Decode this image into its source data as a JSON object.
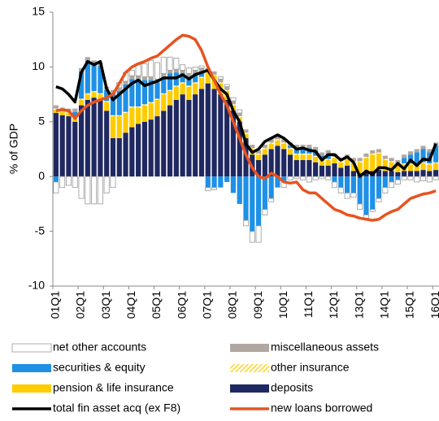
{
  "chart_data": {
    "type": "bar",
    "stacked": true,
    "y_label": "% of GDP",
    "ylim": [
      -10,
      15
    ],
    "yticks": [
      -10,
      -5,
      0,
      5,
      10,
      15
    ],
    "categories": [
      "01Q1",
      null,
      null,
      null,
      "02Q1",
      null,
      null,
      null,
      "03Q1",
      null,
      null,
      null,
      "04Q1",
      null,
      null,
      null,
      "05Q1",
      null,
      null,
      null,
      "06Q1",
      null,
      null,
      null,
      "07Q1",
      null,
      null,
      null,
      "08Q1",
      null,
      null,
      null,
      "09Q1",
      null,
      null,
      null,
      "10Q1",
      null,
      null,
      null,
      "11Q1",
      null,
      null,
      null,
      "12Q1",
      null,
      null,
      null,
      "13Q1",
      null,
      null,
      null,
      "14Q1",
      null,
      null,
      null,
      "15Q1",
      null,
      null,
      null,
      "16Q1"
    ],
    "series": [
      {
        "name": "deposits",
        "type": "bar",
        "color": "#1f2860",
        "values": [
          5.8,
          5.6,
          5.5,
          5.0,
          6.5,
          7.0,
          7.2,
          7.0,
          6.0,
          3.5,
          3.5,
          4.0,
          4.5,
          4.8,
          5.0,
          5.2,
          5.5,
          6.0,
          6.5,
          7.0,
          7.5,
          7.0,
          7.5,
          8.0,
          8.5,
          8.0,
          7.5,
          7.0,
          6.0,
          5.0,
          3.5,
          2.0,
          1.5,
          2.0,
          2.5,
          2.8,
          2.5,
          2.0,
          1.5,
          1.5,
          1.5,
          1.3,
          1.0,
          1.0,
          1.2,
          0.8,
          1.0,
          0.5,
          0.3,
          0.5,
          0.5,
          0.6,
          0.5,
          0.5,
          0.4,
          0.5,
          0.5,
          0.5,
          0.6,
          0.5,
          0.6
        ]
      },
      {
        "name": "pension & life insurance",
        "type": "bar",
        "color": "#ffcc00",
        "values": [
          0.3,
          0.3,
          0.3,
          0.3,
          0.5,
          0.5,
          0.5,
          0.5,
          0.8,
          2.0,
          2.0,
          1.8,
          1.8,
          1.5,
          1.5,
          1.5,
          1.5,
          1.5,
          1.3,
          1.2,
          1.0,
          1.2,
          1.0,
          1.0,
          1.0,
          1.2,
          1.0,
          0.8,
          0.5,
          0.4,
          0.4,
          0.5,
          0.5,
          0.5,
          0.5,
          0.5,
          0.5,
          0.5,
          0.5,
          0.5,
          0.5,
          0.5,
          0.5,
          0.5,
          0.5,
          0.5,
          0.6,
          0.8,
          1.0,
          1.2,
          1.5,
          1.5,
          1.0,
          0.8,
          0.7,
          0.6,
          0.6,
          0.6,
          0.6,
          0.6,
          0.6
        ]
      },
      {
        "name": "other insurance",
        "type": "bar",
        "hatch": true,
        "color": "#ffcc00",
        "values": [
          0.1,
          0.1,
          0.1,
          0.1,
          0.1,
          0.1,
          0.1,
          0.1,
          0.1,
          0.1,
          0.1,
          0.1,
          0.1,
          0.1,
          0.1,
          0.1,
          0.1,
          0.1,
          0.1,
          0.1,
          0.1,
          0.1,
          0.1,
          0.1,
          0.1,
          0.1,
          0.1,
          0.1,
          0.1,
          0.1,
          0.1,
          0.1,
          0.1,
          0.1,
          0.1,
          0.1,
          0.1,
          0.1,
          0.1,
          0.1,
          0.1,
          0.1,
          0.1,
          0.1,
          0.1,
          0.1,
          0.1,
          0.1,
          0.1,
          0.1,
          0.1,
          0.1,
          0.1,
          0.1,
          0.1,
          0.1,
          0.1,
          0.1,
          0.1,
          0.1,
          0.1
        ]
      },
      {
        "name": "securities & equity",
        "type": "bar",
        "color": "#1e90e6",
        "values": [
          -0.5,
          0.0,
          0.0,
          0.5,
          2.5,
          3.0,
          2.5,
          2.5,
          1.0,
          2.0,
          2.2,
          2.5,
          2.5,
          2.5,
          2.2,
          2.0,
          1.5,
          1.5,
          1.5,
          1.2,
          0.8,
          0.8,
          0.8,
          0.5,
          -1.0,
          -1.0,
          -1.0,
          -0.5,
          -1.5,
          -2.5,
          -4.0,
          -5.0,
          -4.5,
          -3.0,
          -2.0,
          -1.0,
          -0.5,
          0.2,
          0.5,
          0.5,
          0.5,
          0.5,
          0.3,
          0.5,
          -0.5,
          -1.0,
          -1.5,
          -1.5,
          -2.5,
          -3.5,
          -3.0,
          -2.0,
          -1.0,
          -0.5,
          -0.3,
          0.5,
          0.8,
          1.0,
          1.2,
          1.0,
          1.5
        ]
      },
      {
        "name": "miscellaneous assets",
        "type": "bar",
        "color": "#b0a8a0",
        "values": [
          0.3,
          0.3,
          0.3,
          0.3,
          0.3,
          0.3,
          0.3,
          0.3,
          0.3,
          0.3,
          0.3,
          0.3,
          0.3,
          0.3,
          0.3,
          0.3,
          0.3,
          0.3,
          0.3,
          0.3,
          0.3,
          0.3,
          0.3,
          0.3,
          0.3,
          0.3,
          0.3,
          0.3,
          0.3,
          0.3,
          0.3,
          0.3,
          0.3,
          0.3,
          0.3,
          0.3,
          0.3,
          0.3,
          0.3,
          0.3,
          0.3,
          0.3,
          0.3,
          0.3,
          0.3,
          0.3,
          0.3,
          0.3,
          0.3,
          0.3,
          0.3,
          0.3,
          0.3,
          0.3,
          0.3,
          0.3,
          0.3,
          0.3,
          0.3,
          0.3,
          0.3
        ]
      },
      {
        "name": "net other accounts",
        "type": "bar",
        "color": "#ffffff",
        "stroke": "#999999",
        "values": [
          -1.0,
          -1.0,
          -0.8,
          -1.0,
          -2.0,
          -2.5,
          -2.5,
          -2.5,
          -1.5,
          -1.0,
          0.5,
          0.8,
          0.5,
          1.0,
          1.2,
          1.5,
          1.5,
          1.5,
          1.2,
          1.0,
          0.5,
          0.5,
          0.3,
          0.2,
          -0.3,
          -0.2,
          0.2,
          0.2,
          0.3,
          0.3,
          -0.5,
          -1.0,
          -1.5,
          -0.5,
          -0.3,
          0.0,
          -0.5,
          -0.3,
          -0.2,
          -0.3,
          -0.5,
          -0.3,
          -0.2,
          -0.3,
          -0.5,
          -0.5,
          -0.5,
          -0.4,
          -0.5,
          -0.3,
          -0.2,
          -0.3,
          -0.5,
          -0.5,
          -0.4,
          -0.3,
          -0.3,
          -0.5,
          -0.4,
          -0.5,
          -0.3
        ]
      },
      {
        "name": "total fin asset acq (ex F8)",
        "type": "line",
        "color": "#000000",
        "values": [
          8.2,
          8.0,
          7.5,
          6.8,
          9.5,
          10.5,
          10.2,
          10.5,
          8.0,
          7.0,
          7.5,
          8.0,
          8.5,
          8.8,
          8.3,
          8.5,
          8.7,
          9.0,
          9.0,
          9.0,
          9.3,
          8.9,
          9.3,
          9.5,
          9.7,
          8.8,
          8.0,
          7.5,
          6.0,
          5.0,
          3.0,
          2.2,
          2.5,
          3.2,
          3.5,
          3.8,
          3.5,
          3.0,
          2.5,
          2.6,
          2.4,
          2.3,
          1.5,
          2.0,
          2.0,
          1.5,
          1.8,
          1.3,
          0.0,
          0.5,
          0.2,
          0.8,
          0.8,
          0.6,
          1.2,
          0.7,
          1.5,
          1.0,
          1.6,
          1.5,
          3.0
        ]
      },
      {
        "name": "new loans borrowed",
        "type": "line",
        "color": "#e8531f",
        "values": [
          6.0,
          6.1,
          6.0,
          5.3,
          6.0,
          6.5,
          6.8,
          7.0,
          7.2,
          7.5,
          8.5,
          9.5,
          10.0,
          10.3,
          10.5,
          10.8,
          11.0,
          11.5,
          12.0,
          12.5,
          12.9,
          12.8,
          12.5,
          11.5,
          10.0,
          8.8,
          7.5,
          6.5,
          5.0,
          3.5,
          2.0,
          0.8,
          0.0,
          -0.2,
          0.3,
          0.0,
          -0.5,
          -0.6,
          -0.5,
          -1.2,
          -1.5,
          -1.5,
          -2.0,
          -2.5,
          -3.0,
          -3.2,
          -3.5,
          -3.6,
          -3.8,
          -3.9,
          -4.0,
          -3.9,
          -3.5,
          -3.2,
          -3.0,
          -2.5,
          -2.0,
          -1.8,
          -1.6,
          -1.5,
          -1.3
        ]
      }
    ],
    "legend_order": [
      5,
      4,
      3,
      2,
      1,
      0,
      6,
      7
    ]
  }
}
